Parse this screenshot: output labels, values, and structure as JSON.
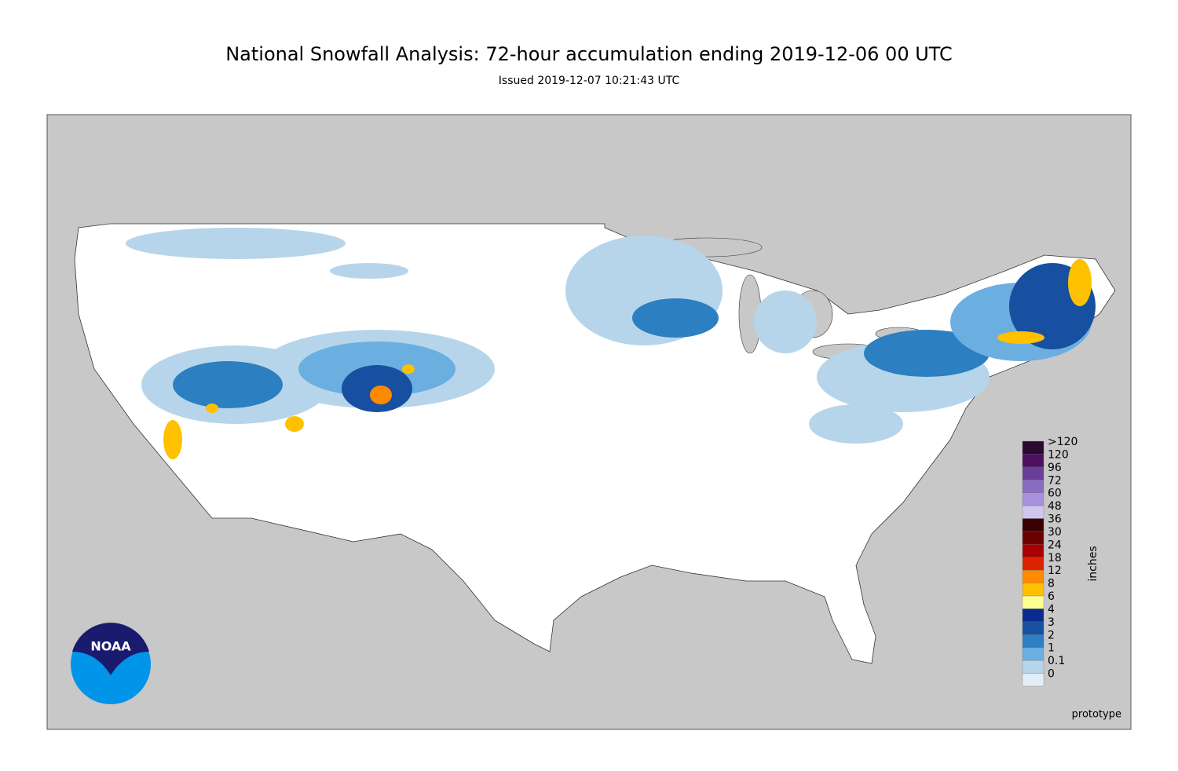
{
  "header": {
    "title": "National Snowfall Analysis: 72-hour accumulation ending 2019-12-06 00 UTC",
    "subtitle": "Issued 2019-12-07 10:21:43 UTC"
  },
  "legend": {
    "unit": "inches",
    "items": [
      {
        "label": ">120",
        "color": "#2a0a2f"
      },
      {
        "label": "120",
        "color": "#4b1060"
      },
      {
        "label": "96",
        "color": "#6a3d9a"
      },
      {
        "label": "72",
        "color": "#8b6cc5"
      },
      {
        "label": "60",
        "color": "#a990dc"
      },
      {
        "label": "48",
        "color": "#cfc6f2"
      },
      {
        "label": "36",
        "color": "#3a0000"
      },
      {
        "label": "30",
        "color": "#6b0000"
      },
      {
        "label": "24",
        "color": "#a80000"
      },
      {
        "label": "18",
        "color": "#dd2200"
      },
      {
        "label": "12",
        "color": "#ff8a00"
      },
      {
        "label": "8",
        "color": "#ffc000"
      },
      {
        "label": "6",
        "color": "#ffff90"
      },
      {
        "label": "4",
        "color": "#0a2a8f"
      },
      {
        "label": "3",
        "color": "#1750a0"
      },
      {
        "label": "2",
        "color": "#2c7fc0"
      },
      {
        "label": "1",
        "color": "#6aafdf"
      },
      {
        "label": "0.1",
        "color": "#b7d5ea"
      },
      {
        "label": "0",
        "color": "#e2eef7"
      }
    ]
  },
  "logo": {
    "text": "NOAA"
  },
  "footer": {
    "note": "prototype"
  }
}
